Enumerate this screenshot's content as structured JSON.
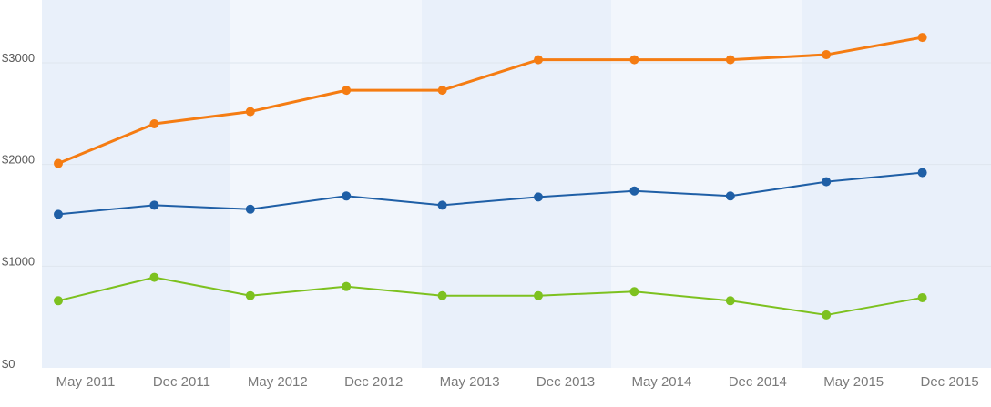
{
  "chart_data": {
    "type": "line",
    "title": "",
    "xlabel": "",
    "ylabel": "",
    "categories": [
      "May 2011",
      "Dec 2011",
      "May 2012",
      "Dec 2012",
      "May 2013",
      "Dec 2013",
      "May 2014",
      "Dec 2014",
      "May 2015",
      "Dec 2015"
    ],
    "y_ticks": [
      0,
      1000,
      2000,
      3000
    ],
    "y_tick_labels": [
      "$0",
      "$1000",
      "$2000",
      "$3000"
    ],
    "ylim": [
      0,
      3600
    ],
    "grid": true,
    "legend": "none",
    "series": [
      {
        "color": "#f57c12",
        "values": [
          2010,
          2400,
          2520,
          2730,
          2730,
          3030,
          3030,
          3030,
          3080,
          3250
        ]
      },
      {
        "color": "#1f5fa6",
        "values": [
          1510,
          1600,
          1560,
          1690,
          1600,
          1680,
          1740,
          1690,
          1830,
          1920
        ]
      },
      {
        "color": "#7dc11f",
        "values": [
          660,
          890,
          710,
          800,
          710,
          710,
          750,
          660,
          520,
          690
        ]
      }
    ],
    "colors": {
      "band_dark": "#e9f0fa",
      "band_light": "#f2f6fc",
      "grid": "#dfe6ee",
      "axis_label": "#7a7a7a"
    }
  }
}
